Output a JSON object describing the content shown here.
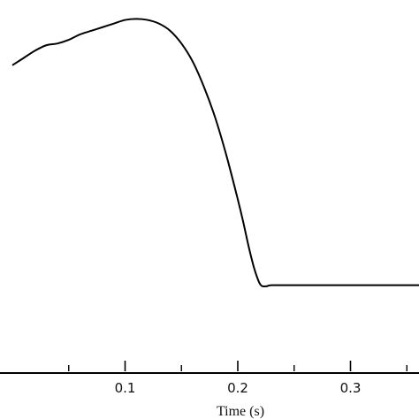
{
  "chart_data": {
    "type": "line",
    "title": "",
    "xlabel": "Time (s)",
    "ylabel": "",
    "xlim": [
      0.0,
      0.4
    ],
    "ylim": [
      0,
      1
    ],
    "x_ticks": [
      0.1,
      0.2,
      0.3
    ],
    "x_tick_labels": [
      "0.1",
      "0.2",
      "0.3"
    ],
    "x_minor_ticks": [
      0.05,
      0.15,
      0.25,
      0.35
    ],
    "grid": false,
    "legend": "none",
    "line_color": "#000000",
    "series": [
      {
        "x": [
          0.0,
          0.01,
          0.02,
          0.03,
          0.04,
          0.05,
          0.06,
          0.07,
          0.08,
          0.09,
          0.1,
          0.11,
          0.12,
          0.13,
          0.14,
          0.15,
          0.16,
          0.17,
          0.18,
          0.19,
          0.2,
          0.205,
          0.21,
          0.215,
          0.22,
          0.225,
          0.23,
          0.25,
          0.3,
          0.35,
          0.4
        ],
        "y": [
          0.82,
          0.84,
          0.86,
          0.875,
          0.88,
          0.89,
          0.905,
          0.915,
          0.925,
          0.935,
          0.945,
          0.948,
          0.945,
          0.935,
          0.915,
          0.88,
          0.83,
          0.76,
          0.675,
          0.57,
          0.45,
          0.385,
          0.315,
          0.255,
          0.215,
          0.21,
          0.213,
          0.213,
          0.213,
          0.213,
          0.213
        ]
      }
    ]
  }
}
